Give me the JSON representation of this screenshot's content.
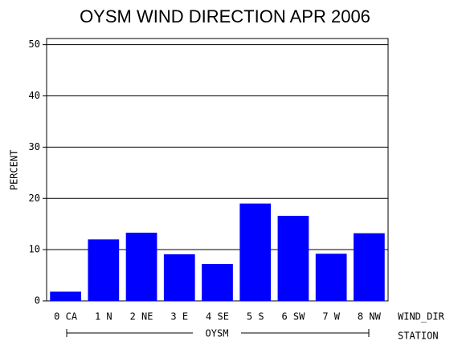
{
  "chart_data": {
    "type": "bar",
    "title": "OYSM WIND DIRECTION APR 2006",
    "categories": [
      "0 CA",
      "1 N",
      "2 NE",
      "3 E",
      "4 SE",
      "5 S",
      "6 SW",
      "7 W",
      "8 NW"
    ],
    "values": [
      1.8,
      12.0,
      13.3,
      9.1,
      7.2,
      19.0,
      16.6,
      9.2,
      13.2
    ],
    "color": "#0000ff",
    "ylim": [
      0,
      51.2
    ],
    "yticks": [
      0,
      10,
      20,
      30,
      40,
      50
    ],
    "grid": true,
    "y_label": "PERCENT",
    "x_label": "WIND_DIR",
    "group_label": "OYSM",
    "group_axis_label": "STATION"
  }
}
